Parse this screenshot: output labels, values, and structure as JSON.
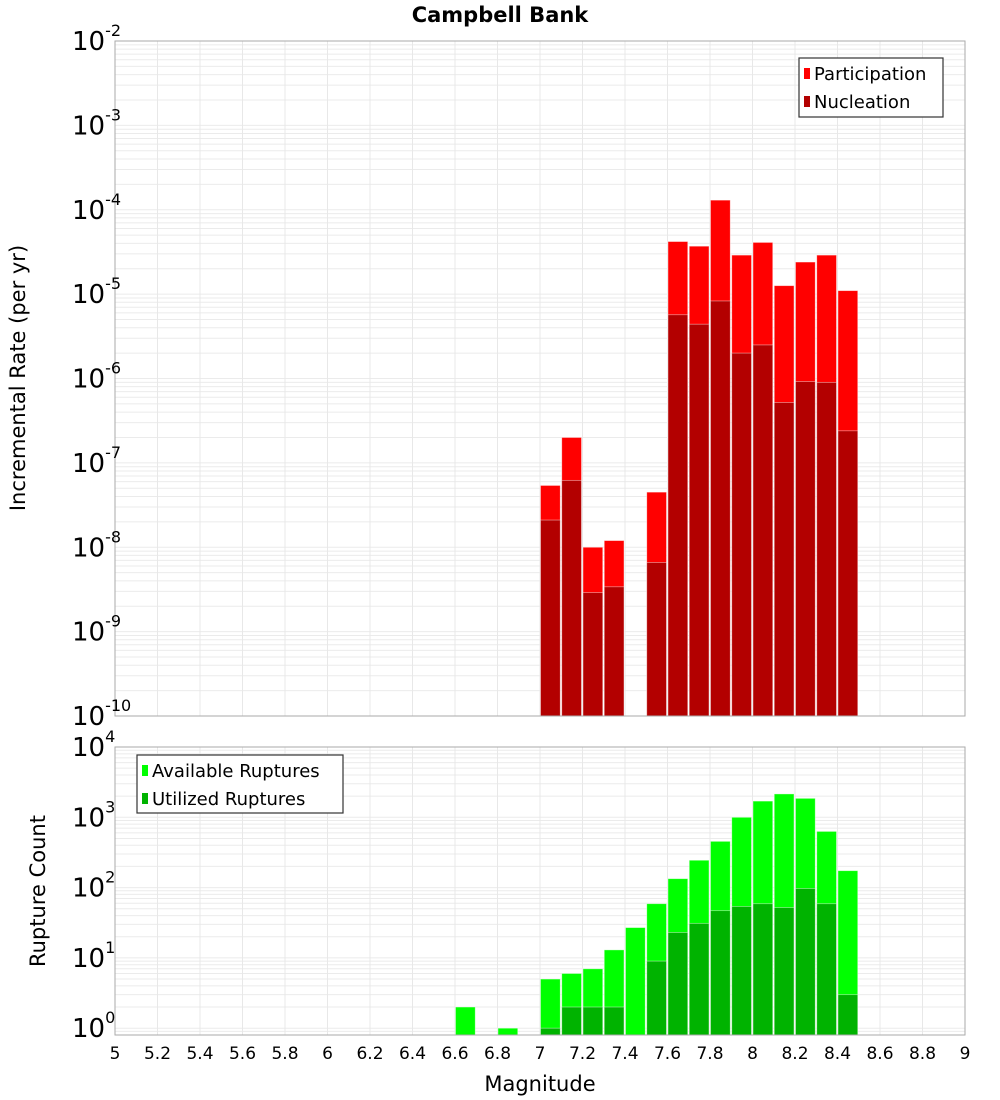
{
  "chart_data": [
    {
      "type": "bar",
      "title": "Campbell Bank",
      "xlabel": "Magnitude",
      "ylabel": "Incremental Rate (per yr)",
      "yscale": "log",
      "ylim": [
        1e-10,
        0.01
      ],
      "xlim": [
        5,
        9
      ],
      "bin_width": 0.1,
      "x": [
        7.05,
        7.15,
        7.25,
        7.35,
        7.55,
        7.65,
        7.75,
        7.85,
        7.95,
        8.05,
        8.15,
        8.25,
        8.35,
        8.45
      ],
      "series": [
        {
          "name": "Participation",
          "color": "#ff0000",
          "values": [
            5.4e-08,
            2e-07,
            1e-08,
            1.2e-08,
            4.5e-08,
            4.2e-05,
            3.7e-05,
            0.00013,
            2.9e-05,
            4.1e-05,
            1.26e-05,
            2.4e-05,
            2.9e-05,
            1.1e-05
          ]
        },
        {
          "name": "Nucleation",
          "color": "#b30000",
          "values": [
            2.1e-08,
            6.2e-08,
            2.9e-09,
            3.4e-09,
            6.6e-09,
            5.7e-06,
            4.4e-06,
            8.3e-06,
            2e-06,
            2.5e-06,
            5.2e-07,
            9.2e-07,
            9e-07,
            2.4e-07
          ]
        }
      ],
      "y_ticks": [
        {
          "base": "10",
          "exp": "-2"
        },
        {
          "base": "10",
          "exp": "-3"
        },
        {
          "base": "10",
          "exp": "-4"
        },
        {
          "base": "10",
          "exp": "-5"
        },
        {
          "base": "10",
          "exp": "-6"
        },
        {
          "base": "10",
          "exp": "-7"
        },
        {
          "base": "10",
          "exp": "-8"
        },
        {
          "base": "10",
          "exp": "-9"
        },
        {
          "base": "10",
          "exp": "-10"
        }
      ],
      "legend_position": "top-right",
      "grid": true
    },
    {
      "type": "bar",
      "xlabel": "Magnitude",
      "ylabel": "Rupture Count",
      "yscale": "log",
      "ylim": [
        0.8,
        10000
      ],
      "xlim": [
        5,
        9
      ],
      "bin_width": 0.1,
      "x": [
        6.65,
        6.85,
        7.05,
        7.15,
        7.25,
        7.35,
        7.45,
        7.55,
        7.65,
        7.75,
        7.85,
        7.95,
        8.05,
        8.15,
        8.25,
        8.35,
        8.45
      ],
      "series": [
        {
          "name": "Available Ruptures",
          "color": "#00ff00",
          "values": [
            2,
            1,
            5,
            6,
            7,
            13,
            27,
            59,
            134,
            245,
            455,
            1000,
            1700,
            2150,
            1860,
            630,
            174
          ]
        },
        {
          "name": "Utilized Ruptures",
          "color": "#00b300",
          "values": [
            0,
            0,
            1,
            2,
            2,
            2,
            0,
            9,
            23,
            31,
            47,
            54,
            59,
            52,
            97,
            59,
            3
          ]
        }
      ],
      "y_ticks": [
        {
          "base": "10",
          "exp": "4"
        },
        {
          "base": "10",
          "exp": "3"
        },
        {
          "base": "10",
          "exp": "2"
        },
        {
          "base": "10",
          "exp": "1"
        },
        {
          "base": "10",
          "exp": "0"
        }
      ],
      "x_ticks": [
        "5",
        "5.2",
        "5.4",
        "5.6",
        "5.8",
        "6",
        "6.2",
        "6.4",
        "6.6",
        "6.8",
        "7",
        "7.2",
        "7.4",
        "7.6",
        "7.8",
        "8",
        "8.2",
        "8.4",
        "8.6",
        "8.8",
        "9"
      ],
      "legend_position": "top-left",
      "grid": true
    }
  ]
}
